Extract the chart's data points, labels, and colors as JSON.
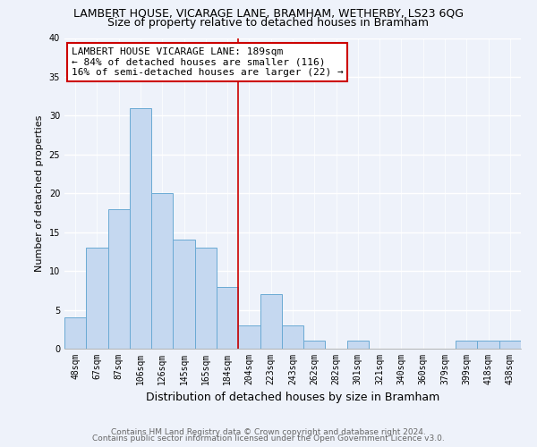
{
  "title": "LAMBERT HOUSE, VICARAGE LANE, BRAMHAM, WETHERBY, LS23 6QG",
  "subtitle": "Size of property relative to detached houses in Bramham",
  "xlabel": "Distribution of detached houses by size in Bramham",
  "ylabel": "Number of detached properties",
  "bin_labels": [
    "48sqm",
    "67sqm",
    "87sqm",
    "106sqm",
    "126sqm",
    "145sqm",
    "165sqm",
    "184sqm",
    "204sqm",
    "223sqm",
    "243sqm",
    "262sqm",
    "282sqm",
    "301sqm",
    "321sqm",
    "340sqm",
    "360sqm",
    "379sqm",
    "399sqm",
    "418sqm",
    "438sqm"
  ],
  "bar_heights": [
    4,
    13,
    18,
    31,
    20,
    14,
    13,
    8,
    3,
    7,
    3,
    1,
    0,
    1,
    0,
    0,
    0,
    0,
    1,
    1,
    1
  ],
  "bar_color": "#c5d8f0",
  "bar_edge_color": "#6aaad4",
  "ylim": [
    0,
    40
  ],
  "yticks": [
    0,
    5,
    10,
    15,
    20,
    25,
    30,
    35,
    40
  ],
  "vline_x": 7.5,
  "vline_color": "#cc0000",
  "annotation_line1": "LAMBERT HOUSE VICARAGE LANE: 189sqm",
  "annotation_line2": "← 84% of detached houses are smaller (116)",
  "annotation_line3": "16% of semi-detached houses are larger (22) →",
  "footer_line1": "Contains HM Land Registry data © Crown copyright and database right 2024.",
  "footer_line2": "Contains public sector information licensed under the Open Government Licence v3.0.",
  "background_color": "#eef2fa",
  "grid_color": "#d8e0ee",
  "title_fontsize": 9,
  "subtitle_fontsize": 9,
  "ylabel_fontsize": 8,
  "xlabel_fontsize": 9,
  "tick_fontsize": 7,
  "annotation_fontsize": 8,
  "footer_fontsize": 6.5
}
